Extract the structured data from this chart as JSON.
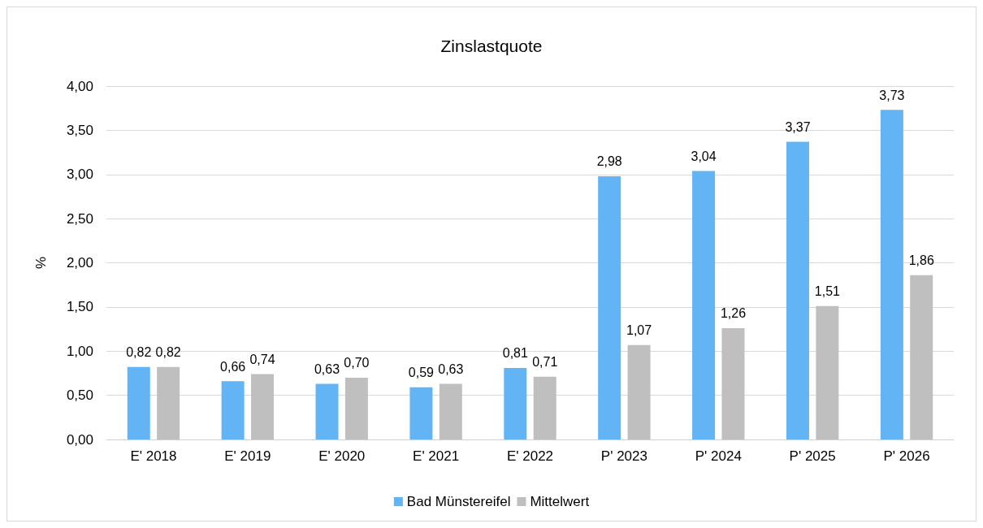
{
  "chart_data": {
    "type": "bar",
    "title": "Zinslastquote",
    "ylabel": "%",
    "categories": [
      "E' 2018",
      "E' 2019",
      "E' 2020",
      "E' 2021",
      "E' 2022",
      "P' 2023",
      "P' 2024",
      "P' 2025",
      "P' 2026"
    ],
    "series": [
      {
        "name": "Bad Münstereifel",
        "color": "#63b4f5",
        "values": [
          0.82,
          0.66,
          0.63,
          0.59,
          0.81,
          2.98,
          3.04,
          3.37,
          3.73
        ],
        "value_labels": [
          "0,82",
          "0,66",
          "0,63",
          "0,59",
          "0,81",
          "2,98",
          "3,04",
          "3,37",
          "3,73"
        ]
      },
      {
        "name": "Mittelwert",
        "color": "#bfbfbf",
        "values": [
          0.82,
          0.74,
          0.7,
          0.63,
          0.71,
          1.07,
          1.26,
          1.51,
          1.86
        ],
        "value_labels": [
          "0,82",
          "0,74",
          "0,70",
          "0,63",
          "0,71",
          "1,07",
          "1,26",
          "1,51",
          "1,86"
        ]
      }
    ],
    "ylim": [
      0,
      4
    ],
    "yticks": [
      {
        "value": 0,
        "label": "0,00"
      },
      {
        "value": 0.5,
        "label": "0,50"
      },
      {
        "value": 1,
        "label": "1,00"
      },
      {
        "value": 1.5,
        "label": "1,50"
      },
      {
        "value": 2,
        "label": "2,00"
      },
      {
        "value": 2.5,
        "label": "2,50"
      },
      {
        "value": 3,
        "label": "3,00"
      },
      {
        "value": 3.5,
        "label": "3,50"
      },
      {
        "value": 4,
        "label": "4,00"
      }
    ],
    "grid": "y",
    "legend": "bottom"
  }
}
